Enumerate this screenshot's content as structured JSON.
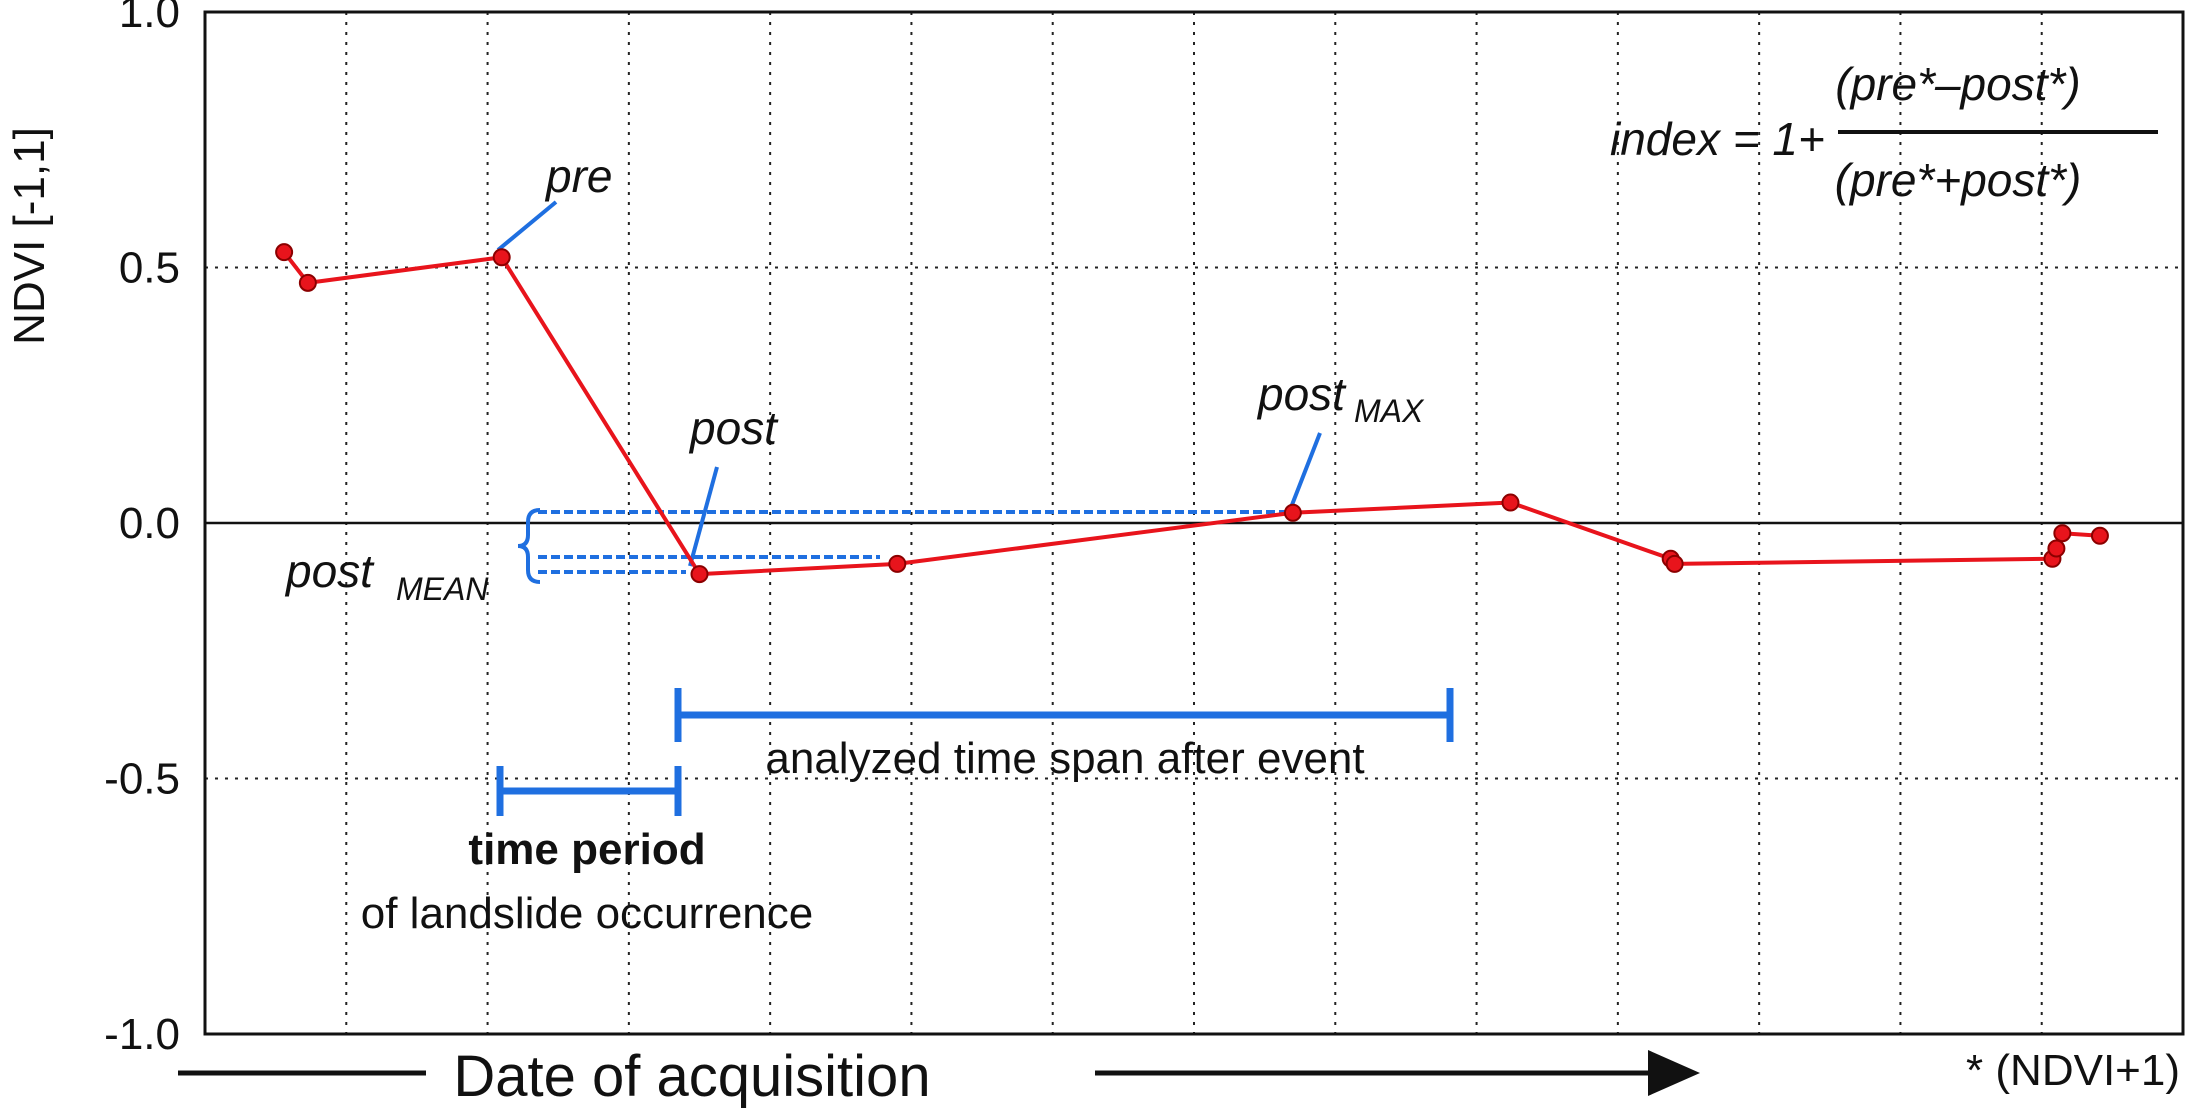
{
  "chart_data": {
    "type": "line",
    "title": "",
    "xlabel": "Date of acquisition",
    "ylabel": "NDVI [-1,1]",
    "ylim": [
      -1.0,
      1.0
    ],
    "yticks": [
      1.0,
      0.5,
      0.0,
      -0.5,
      -1.0
    ],
    "ytick_labels": [
      "1.0",
      "0.5",
      "0.0",
      "-0.5",
      "-1.0"
    ],
    "grid": true,
    "x_relative": [
      0.04,
      0.052,
      0.15,
      0.25,
      0.35,
      0.55,
      0.66,
      0.741,
      0.743,
      0.934,
      0.936,
      0.939,
      0.958
    ],
    "series": [
      {
        "values": [
          0.53,
          0.47,
          0.52,
          -0.1,
          -0.08,
          0.02,
          0.04,
          -0.07,
          -0.08,
          -0.07,
          -0.05,
          -0.02,
          -0.025
        ]
      }
    ],
    "footnote": "* (NDVI+1)",
    "formula": {
      "lhs": "index = 1+",
      "numerator": "(pre*–post*)",
      "denominator": "(pre*+post*)"
    },
    "annotations": {
      "pre": "pre",
      "post": "post",
      "post_max": "post",
      "post_max_sub": "MAX",
      "post_mean": "post",
      "post_mean_sub": "MEAN",
      "span_label": "analyzed time span after event",
      "period_bold": "time period",
      "period_rest": "of landslide occurrence"
    },
    "colors": {
      "series": "#e8141c",
      "marker_edge": "#8b0000",
      "annotation": "#1f6fe0",
      "grid": "#222222"
    }
  }
}
